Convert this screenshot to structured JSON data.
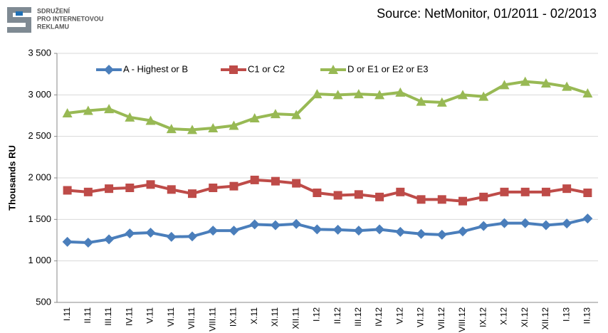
{
  "logo": [
    "SDRUŽENÍ",
    "PRO INTERNETOVOU",
    "REKLAMU"
  ],
  "chart_data": {
    "type": "line",
    "title": "Source: NetMonitor, 01/2011 - 02/2013",
    "y_label": "Thousands RU",
    "categories": [
      "I.11",
      "II.11",
      "III.11",
      "IV.11",
      "V.11",
      "VI.11",
      "VII.11",
      "VIII.11",
      "IX.11",
      "X.11",
      "XI.11",
      "XII.11",
      "I.12",
      "II.12",
      "III.12",
      "IV.12",
      "V.12",
      "VI.12",
      "VII.12",
      "VIII.12",
      "IX.12",
      "X.12",
      "XI.12",
      "XII.12",
      "I.13",
      "II.13"
    ],
    "series": [
      {
        "name": "A - Highest or B",
        "color": "#4a7ebb",
        "marker": "diamond",
        "values": [
          1230,
          1220,
          1260,
          1330,
          1340,
          1290,
          1295,
          1365,
          1365,
          1440,
          1430,
          1445,
          1380,
          1375,
          1365,
          1380,
          1350,
          1325,
          1315,
          1355,
          1420,
          1455,
          1455,
          1430,
          1450,
          1510
        ]
      },
      {
        "name": "C1  or C2",
        "color": "#be4b48",
        "marker": "square",
        "values": [
          1850,
          1830,
          1870,
          1880,
          1920,
          1860,
          1810,
          1880,
          1900,
          1975,
          1960,
          1935,
          1820,
          1790,
          1800,
          1770,
          1830,
          1740,
          1740,
          1720,
          1770,
          1830,
          1830,
          1830,
          1870,
          1820
        ]
      },
      {
        "name": "D or E1 or E2  or E3",
        "color": "#98b954",
        "marker": "triangle",
        "values": [
          2780,
          2810,
          2830,
          2730,
          2690,
          2590,
          2580,
          2600,
          2630,
          2720,
          2770,
          2760,
          3010,
          3000,
          3010,
          3000,
          3030,
          2920,
          2910,
          3000,
          2980,
          3120,
          3160,
          3140,
          3100,
          3020
        ]
      }
    ],
    "ylim": [
      500,
      3500
    ],
    "yticks": [
      500,
      {
        "value": 1000,
        "label": "1 000"
      },
      {
        "value": 1500,
        "label": "1 500"
      },
      {
        "value": 2000,
        "label": "2 000"
      },
      {
        "value": 2500,
        "label": "2 500"
      },
      {
        "value": 3000,
        "label": "3 000"
      },
      {
        "value": 3500,
        "label": "3 500"
      }
    ],
    "grid": true,
    "legend": "top"
  }
}
